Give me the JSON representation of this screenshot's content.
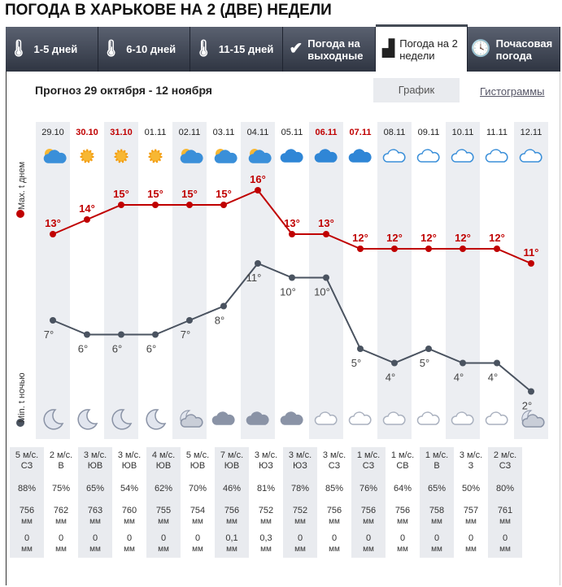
{
  "title": "ПОГОДА В ХАРЬКОВЕ НА 2 (ДВЕ) НЕДЕЛИ",
  "tabs": [
    {
      "label": "1-5 дней",
      "icon": "thermometer-icon"
    },
    {
      "label": "6-10 дней",
      "icon": "thermometer-icon"
    },
    {
      "label": "11-15 дней",
      "icon": "thermometer-icon"
    },
    {
      "label": "Погода на выходные",
      "icon": "check-icon"
    },
    {
      "label": "Погода на 2 недели",
      "icon": "bar-chart-icon",
      "active": true
    },
    {
      "label": "Почасовая погода",
      "icon": "clock-icon"
    }
  ],
  "forecast_title": "Прогноз 29 октября - 12 ноября",
  "view_graph": "График",
  "view_hist": "Гистограммы",
  "ylabel_day": "Max. t днем",
  "ylabel_night": "Min. t ночью",
  "colors": {
    "day": "#c00000",
    "night": "#4a5360",
    "weekend": "#c00000"
  },
  "dates": [
    "29.10",
    "30.10",
    "31.10",
    "01.11",
    "02.11",
    "03.11",
    "04.11",
    "05.11",
    "06.11",
    "07.11",
    "08.11",
    "09.11",
    "10.11",
    "11.11",
    "12.11"
  ],
  "weekend": [
    1,
    2,
    8,
    9
  ],
  "day_icons": [
    "partly-cloudy",
    "sun",
    "sun",
    "sun",
    "partly-cloudy",
    "partly-cloudy",
    "partly-cloudy",
    "cloud",
    "cloud",
    "cloud",
    "cloud-outline",
    "cloud-outline",
    "cloud-outline",
    "cloud-outline",
    "cloud-outline"
  ],
  "night_icons": [
    "moon",
    "moon",
    "moon",
    "moon",
    "moon-cloud",
    "cloud",
    "cloud",
    "cloud",
    "cloud-outline",
    "cloud-outline",
    "cloud-outline",
    "cloud-outline",
    "cloud-outline",
    "cloud-outline",
    "moon-cloud"
  ],
  "day_temps": [
    "13°",
    "14°",
    "15°",
    "15°",
    "15°",
    "15°",
    "16°",
    "13°",
    "13°",
    "12°",
    "12°",
    "12°",
    "12°",
    "12°",
    "11°"
  ],
  "night_temps": [
    "7°",
    "6°",
    "6°",
    "6°",
    "7°",
    "8°",
    "11°",
    "10°",
    "10°",
    "5°",
    "4°",
    "5°",
    "4°",
    "4°",
    "2°"
  ],
  "day_values": [
    13,
    14,
    15,
    15,
    15,
    15,
    16,
    13,
    13,
    12,
    12,
    12,
    12,
    12,
    11
  ],
  "night_values": [
    7,
    6,
    6,
    6,
    7,
    8,
    11,
    10,
    10,
    5,
    4,
    5,
    4,
    4,
    2
  ],
  "wind_speed": [
    "5 м/с.",
    "2 м/с.",
    "3 м/с.",
    "3 м/с.",
    "4 м/с.",
    "5 м/с.",
    "7 м/с.",
    "3 м/с.",
    "3 м/с.",
    "3 м/с.",
    "1 м/с.",
    "1 м/с.",
    "1 м/с.",
    "3 м/с.",
    "2 м/с."
  ],
  "wind_dir": [
    "СЗ",
    "В",
    "ЮВ",
    "ЮВ",
    "ЮВ",
    "ЮВ",
    "ЮВ",
    "ЮЗ",
    "ЮЗ",
    "СЗ",
    "СЗ",
    "СВ",
    "В",
    "З",
    "СЗ"
  ],
  "humidity": [
    "88%",
    "75%",
    "65%",
    "54%",
    "62%",
    "70%",
    "46%",
    "81%",
    "78%",
    "85%",
    "76%",
    "64%",
    "65%",
    "50%",
    "80%"
  ],
  "pressure": [
    "756",
    "762",
    "763",
    "760",
    "755",
    "754",
    "756",
    "752",
    "752",
    "756",
    "756",
    "756",
    "758",
    "757",
    "761"
  ],
  "precip": [
    "0",
    "0",
    "0",
    "0",
    "0",
    "0",
    "0,1",
    "0,3",
    "0",
    "0",
    "0",
    "0",
    "0",
    "0",
    "0"
  ],
  "unit_mm": "мм"
}
